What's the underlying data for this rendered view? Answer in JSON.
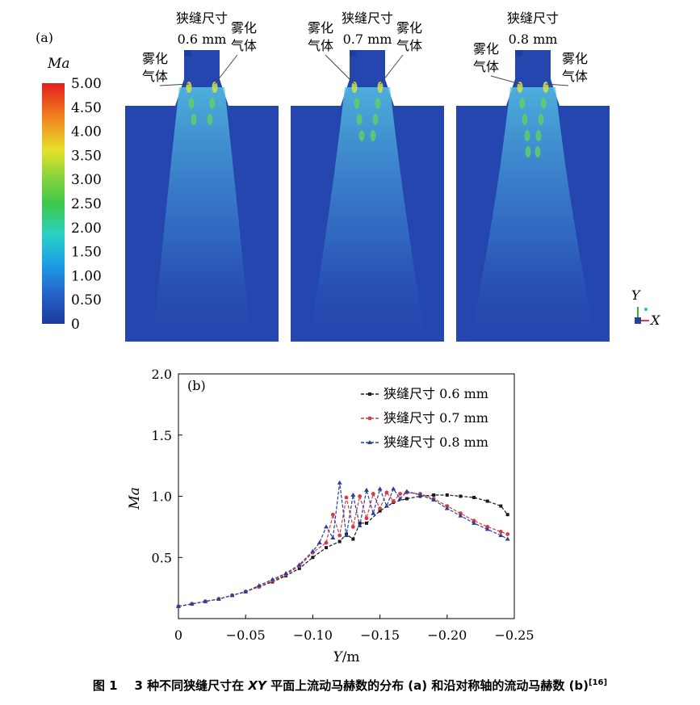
{
  "panel_a": {
    "label": "(a)",
    "colorbar": {
      "title": "Ma",
      "ticks": [
        "5.00",
        "4.50",
        "4.00",
        "3.50",
        "3.00",
        "2.50",
        "2.00",
        "1.50",
        "1.00",
        "0.50",
        "0"
      ]
    },
    "simulations": [
      {
        "slit_label": "狭缝尺寸",
        "slit_value": "0.6 mm",
        "gas_left_1": "雾化",
        "gas_left_2": "气体",
        "gas_right_1": "雾化",
        "gas_right_2": "气体"
      },
      {
        "slit_label": "狭缝尺寸",
        "slit_value": "0.7 mm",
        "gas_left_1": "雾化",
        "gas_left_2": "气体",
        "gas_right_1": "雾化",
        "gas_right_2": "气体"
      },
      {
        "slit_label": "狭缝尺寸",
        "slit_value": "0.8 mm",
        "gas_left_1": "雾化",
        "gas_left_2": "气体",
        "gas_right_1": "雾化",
        "gas_right_2": "气体"
      }
    ],
    "axes_triad": {
      "y": "Y",
      "x": "X"
    }
  },
  "chart_data": {
    "type": "line",
    "panel_label": "(b)",
    "xlabel": "Y/m",
    "ylabel": "Ma",
    "xlim": [
      0,
      -0.25
    ],
    "ylim": [
      0,
      2.0
    ],
    "xticks": [
      0,
      -0.05,
      -0.1,
      -0.15,
      -0.2,
      -0.25
    ],
    "xtick_labels": [
      "0",
      "−0.05",
      "−0.10",
      "−0.15",
      "−0.20",
      "−0.25"
    ],
    "yticks": [
      0.5,
      1.0,
      1.5,
      2.0
    ],
    "ytick_labels": [
      "0.5",
      "1.0",
      "1.5",
      "2.0"
    ],
    "legend_position": "top-right",
    "series": [
      {
        "name": "狭缝尺寸 0.6 mm",
        "color": "#1a1a1a",
        "marker": "square",
        "x": [
          0,
          -0.01,
          -0.02,
          -0.03,
          -0.04,
          -0.05,
          -0.06,
          -0.07,
          -0.08,
          -0.09,
          -0.1,
          -0.11,
          -0.12,
          -0.125,
          -0.13,
          -0.135,
          -0.14,
          -0.15,
          -0.16,
          -0.17,
          -0.18,
          -0.19,
          -0.2,
          -0.21,
          -0.22,
          -0.23,
          -0.24,
          -0.245
        ],
        "y": [
          0.1,
          0.12,
          0.14,
          0.16,
          0.19,
          0.22,
          0.26,
          0.3,
          0.35,
          0.41,
          0.5,
          0.58,
          0.63,
          0.69,
          0.65,
          0.78,
          0.78,
          0.88,
          0.95,
          0.98,
          1.0,
          1.01,
          1.01,
          1.0,
          0.99,
          0.96,
          0.92,
          0.85
        ]
      },
      {
        "name": "狭缝尺寸 0.7 mm",
        "color": "#d63b43",
        "marker": "circle",
        "x": [
          0,
          -0.01,
          -0.02,
          -0.03,
          -0.04,
          -0.05,
          -0.06,
          -0.07,
          -0.08,
          -0.09,
          -0.1,
          -0.11,
          -0.115,
          -0.12,
          -0.125,
          -0.13,
          -0.135,
          -0.14,
          -0.145,
          -0.15,
          -0.155,
          -0.16,
          -0.165,
          -0.17,
          -0.18,
          -0.19,
          -0.2,
          -0.21,
          -0.22,
          -0.23,
          -0.24,
          -0.245
        ],
        "y": [
          0.1,
          0.12,
          0.14,
          0.16,
          0.19,
          0.22,
          0.26,
          0.31,
          0.36,
          0.43,
          0.54,
          0.62,
          0.85,
          0.68,
          0.99,
          0.75,
          1.0,
          0.82,
          1.02,
          0.9,
          1.03,
          0.96,
          1.02,
          1.03,
          1.02,
          0.98,
          0.92,
          0.86,
          0.8,
          0.75,
          0.71,
          0.69
        ]
      },
      {
        "name": "狭缝尺寸 0.8 mm",
        "color": "#2b3f9a",
        "marker": "triangle",
        "x": [
          0,
          -0.01,
          -0.02,
          -0.03,
          -0.04,
          -0.05,
          -0.06,
          -0.07,
          -0.08,
          -0.09,
          -0.1,
          -0.105,
          -0.11,
          -0.115,
          -0.12,
          -0.125,
          -0.13,
          -0.135,
          -0.14,
          -0.145,
          -0.15,
          -0.155,
          -0.16,
          -0.165,
          -0.17,
          -0.18,
          -0.19,
          -0.2,
          -0.21,
          -0.22,
          -0.23,
          -0.24,
          -0.245
        ],
        "y": [
          0.1,
          0.12,
          0.14,
          0.16,
          0.19,
          0.22,
          0.27,
          0.32,
          0.37,
          0.44,
          0.55,
          0.62,
          0.75,
          0.66,
          1.11,
          0.68,
          1.01,
          0.76,
          1.05,
          0.86,
          1.06,
          0.92,
          1.06,
          0.98,
          1.04,
          1.01,
          0.97,
          0.9,
          0.84,
          0.78,
          0.73,
          0.68,
          0.65
        ]
      }
    ]
  },
  "caption": {
    "label": "图 1",
    "text_pre": "3 种不同狭缝尺寸在",
    "text_it": "XY",
    "text_post": "平面上流动马赫数的分布 (a) 和沿对称轴的流动马赫数 (b)",
    "ref": "[16]"
  }
}
